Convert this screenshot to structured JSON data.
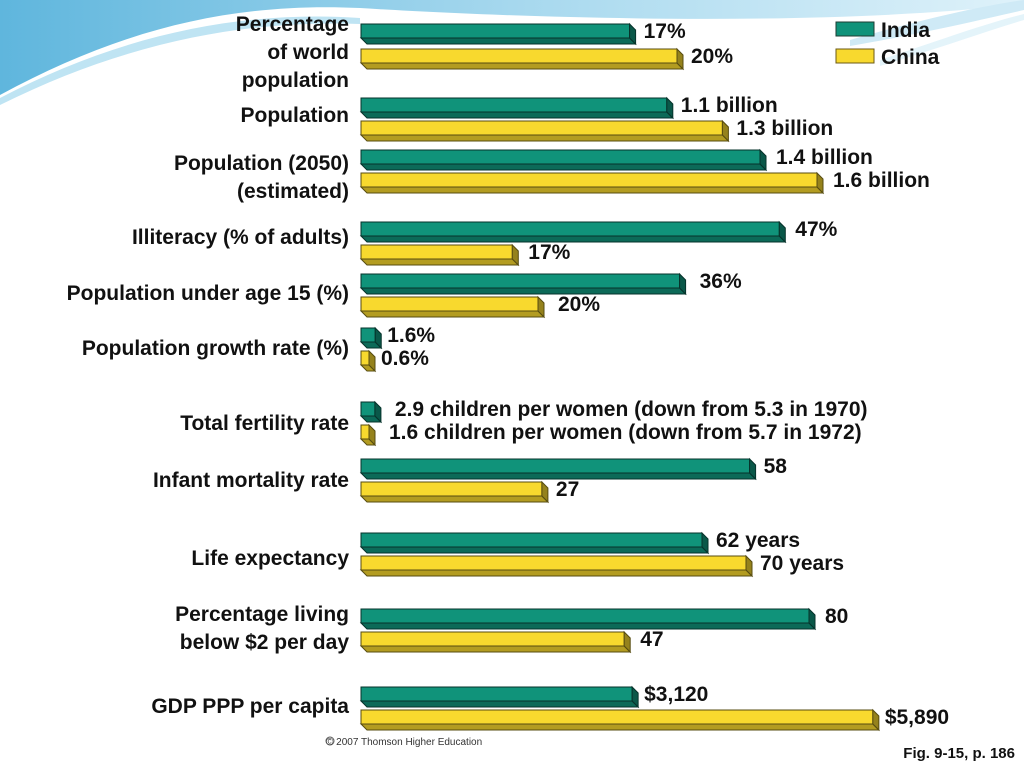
{
  "chart_data": {
    "type": "bar",
    "orientation": "horizontal",
    "series": [
      {
        "name": "India",
        "color": "#10937a"
      },
      {
        "name": "China",
        "color": "#f8d92e"
      }
    ],
    "categories": [
      {
        "label": [
          "Percentage",
          "of world",
          "population"
        ],
        "bar_values": [
          17,
          20
        ],
        "value_labels": [
          "17%",
          "20%"
        ]
      },
      {
        "label": [
          "Population"
        ],
        "bar_values": [
          1.1,
          1.3
        ],
        "value_labels": [
          "1.1 billion",
          "1.3 billion"
        ]
      },
      {
        "label": [
          "Population (2050)",
          "(estimated)"
        ],
        "bar_values": [
          1.4,
          1.6
        ],
        "value_labels": [
          "1.4 billion",
          "1.6 billion"
        ]
      },
      {
        "label": [
          "Illiteracy (% of adults)"
        ],
        "bar_values": [
          47,
          17
        ],
        "value_labels": [
          "47%",
          "17%"
        ]
      },
      {
        "label": [
          "Population under age 15 (%)"
        ],
        "bar_values": [
          36,
          20
        ],
        "value_labels": [
          "36%",
          "20%"
        ]
      },
      {
        "label": [
          "Population growth rate (%)"
        ],
        "bar_values": [
          1.6,
          0.6
        ],
        "value_labels": [
          "1.6%",
          "0.6%"
        ]
      },
      {
        "label": [
          "Total fertility rate"
        ],
        "bar_values": [
          2.9,
          1.6
        ],
        "value_labels": [
          "2.9 children per women (down from 5.3 in 1970)",
          "1.6 children per women (down from 5.7 in 1972)"
        ]
      },
      {
        "label": [
          "Infant mortality rate"
        ],
        "bar_values": [
          58,
          27
        ],
        "value_labels": [
          "58",
          "27"
        ]
      },
      {
        "label": [
          "Life expectancy"
        ],
        "bar_values": [
          62,
          70
        ],
        "value_labels": [
          "62 years",
          "70 years"
        ]
      },
      {
        "label": [
          "Percentage living",
          "below $2 per day"
        ],
        "bar_values": [
          80,
          47
        ],
        "value_labels": [
          "80",
          "47"
        ]
      },
      {
        "label": [
          "GDP PPP per capita"
        ],
        "bar_values": [
          3120,
          5890
        ],
        "value_labels": [
          "$3,120",
          "$5,890"
        ]
      }
    ],
    "legend": {
      "placement": "top-right",
      "entries": [
        "India",
        "China"
      ]
    },
    "grid": false
  },
  "copyright": "© 2007 Thomson Higher Education",
  "figure_ref": "Fig. 9-15, p. 186"
}
